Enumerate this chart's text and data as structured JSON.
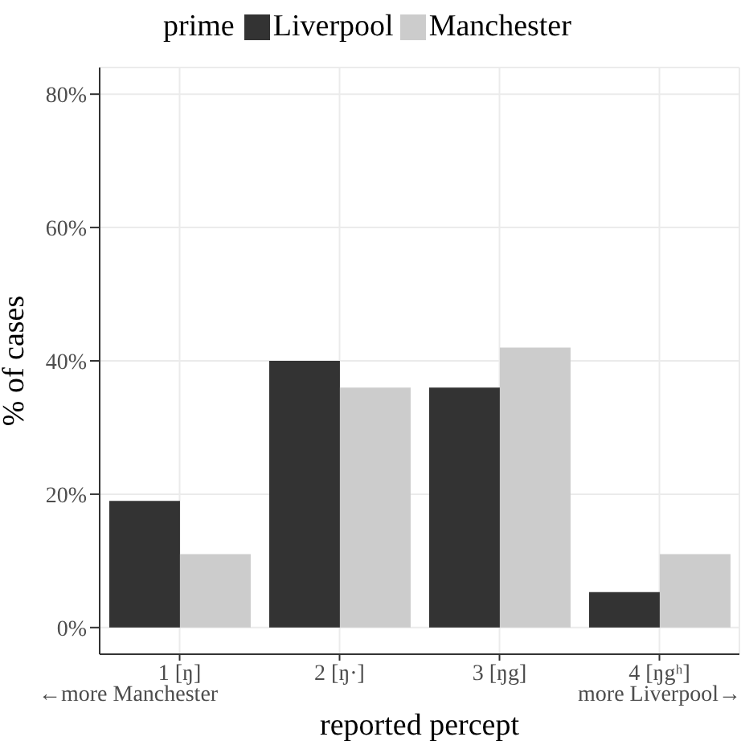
{
  "chart_data": {
    "type": "bar",
    "xlabel": "reported percept",
    "ylabel": "% of cases",
    "legend_title": "prime",
    "categories": [
      "1 [ŋ]",
      "2 [ŋ·]",
      "3 [ŋg]",
      "4 [ŋgʰ]"
    ],
    "series": [
      {
        "name": "Liverpool",
        "color": "#333333",
        "values": [
          19,
          40,
          36,
          5.3
        ]
      },
      {
        "name": "Manchester",
        "color": "#cccccc",
        "values": [
          11,
          36,
          42,
          11
        ]
      }
    ],
    "ylim": [
      -4,
      84
    ],
    "yticks": [
      {
        "value": 0,
        "label": "0%"
      },
      {
        "value": 20,
        "label": "20%"
      },
      {
        "value": 40,
        "label": "40%"
      },
      {
        "value": 60,
        "label": "60%"
      },
      {
        "value": 80,
        "label": "80%"
      }
    ],
    "annotations": [
      "←more Manchester",
      "more Liverpool→"
    ],
    "grid": true,
    "legend": "top"
  }
}
